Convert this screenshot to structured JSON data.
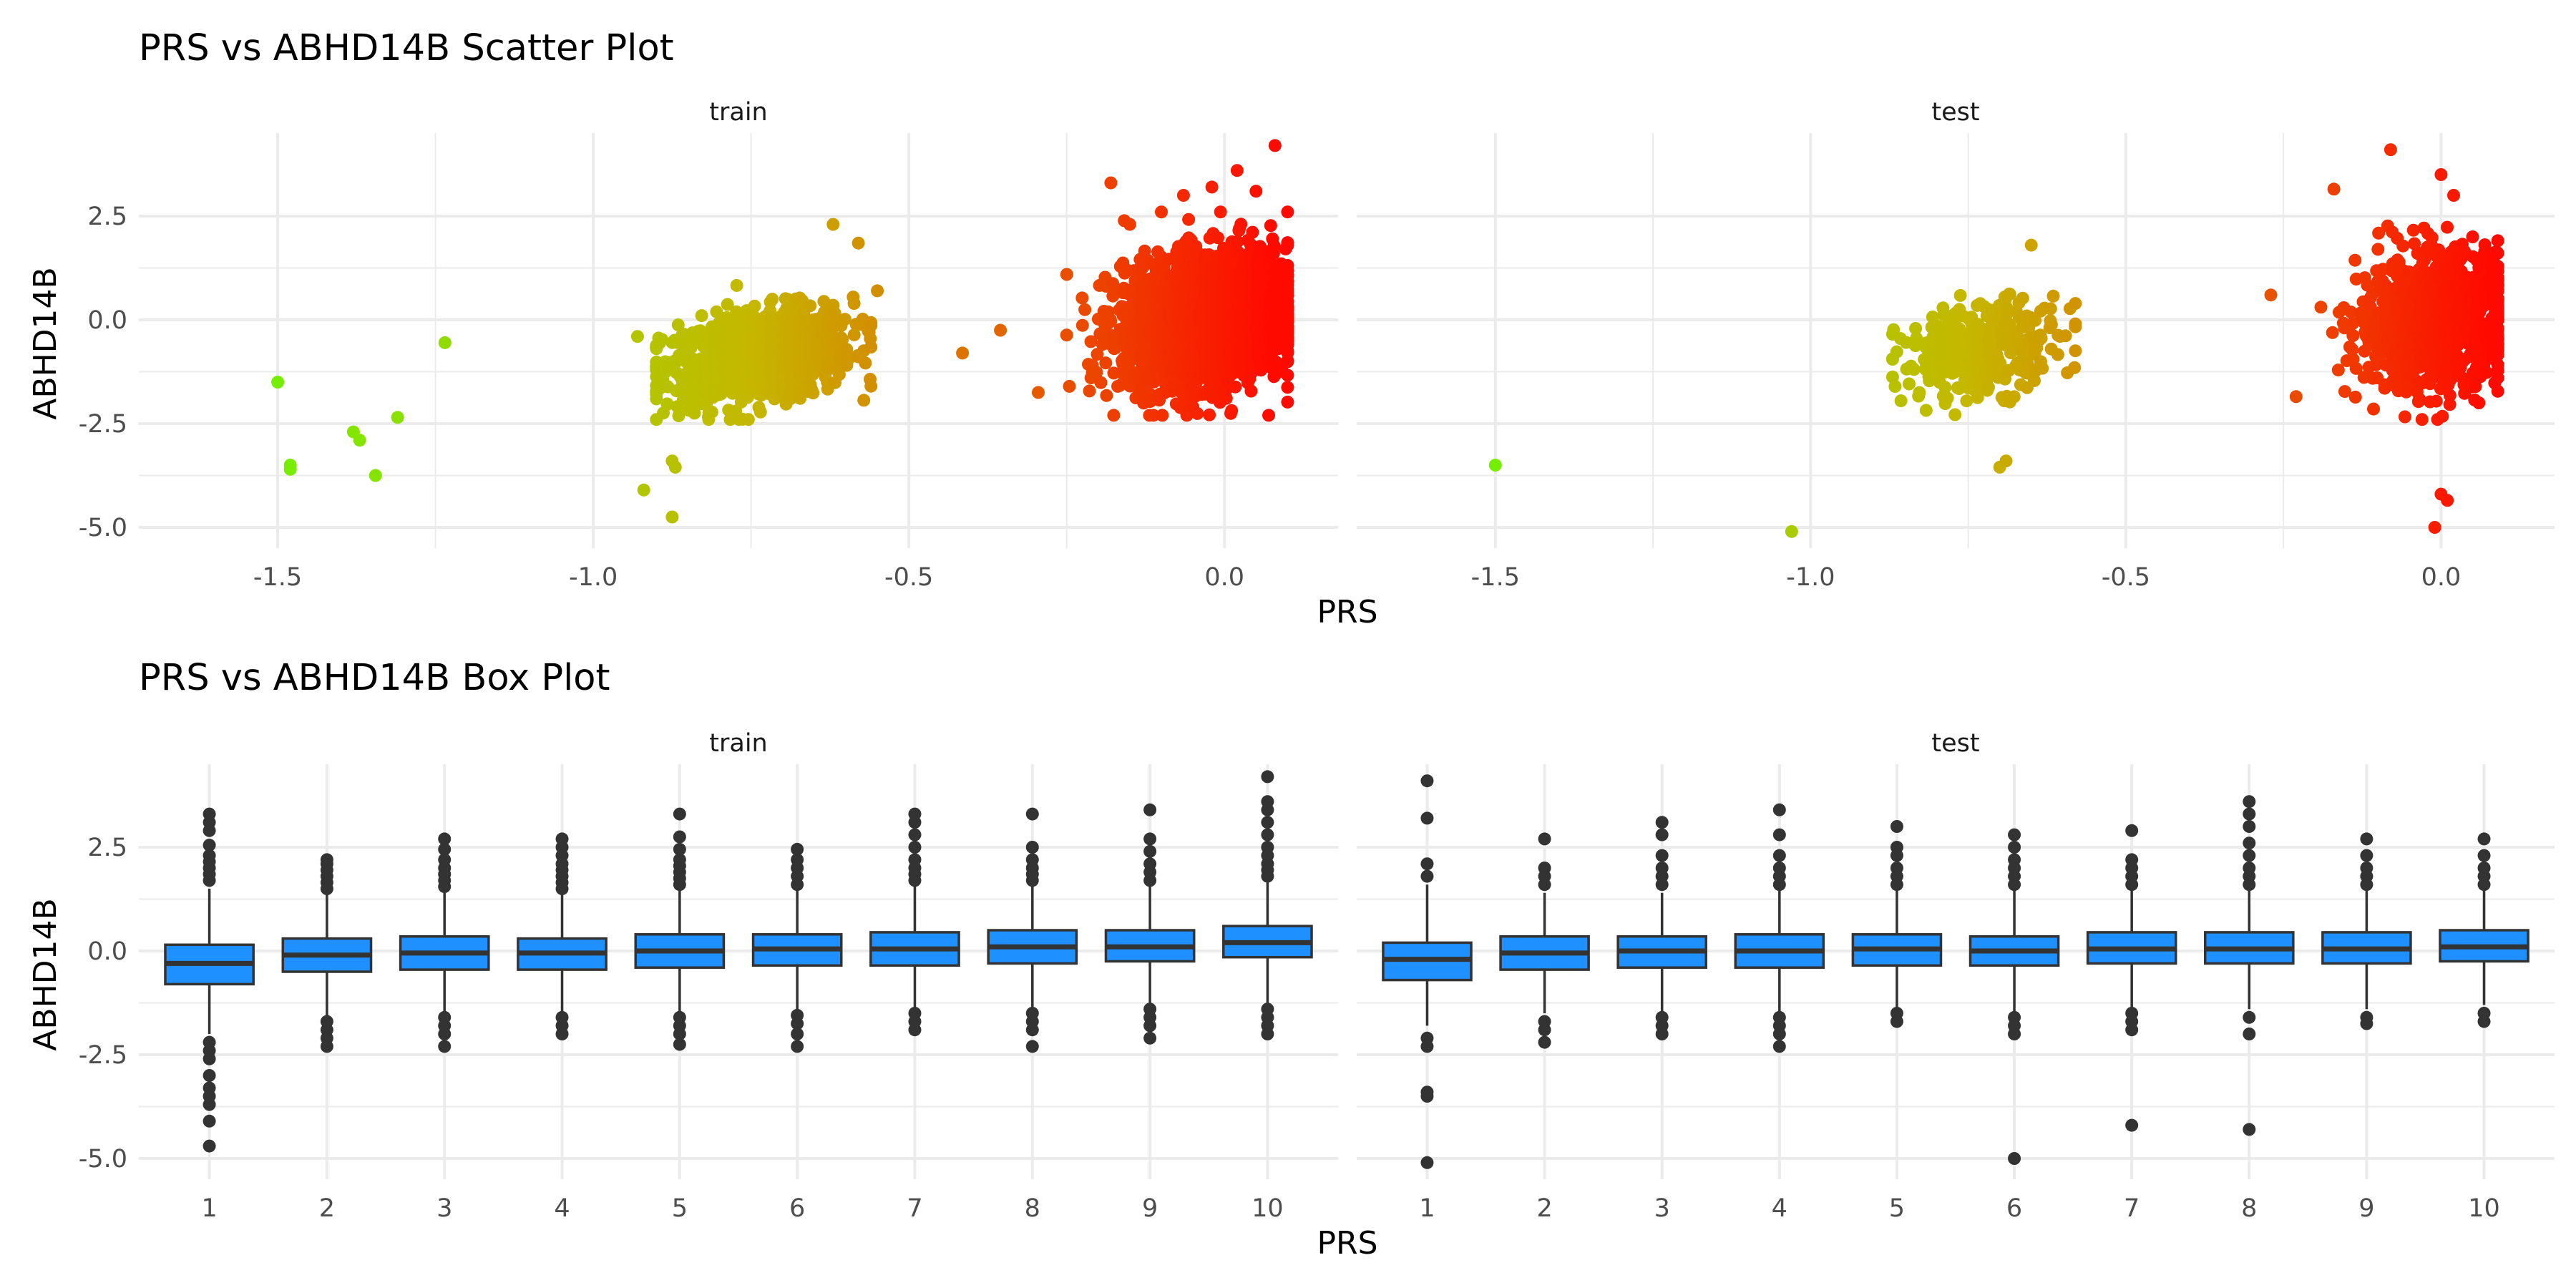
{
  "colors": {
    "box_fill": "#1e90ff",
    "box_line": "#333333",
    "gradient_low": "#76ee00",
    "gradient_mid": "#c5b800",
    "gradient_high": "#ff0a00",
    "grid": "#ebebeb"
  },
  "chart_data": [
    {
      "type": "scatter",
      "title": "PRS vs ABHD14B Scatter Plot",
      "xlabel": "PRS",
      "ylabel": "ABHD14B",
      "xlim": [
        -1.72,
        0.18
      ],
      "ylim": [
        -5.5,
        4.5
      ],
      "x_ticks": [
        -1.5,
        -1.0,
        -0.5,
        0.0
      ],
      "x_tick_labels": [
        "-1.5",
        "-1.0",
        "-0.5",
        "0.0"
      ],
      "y_ticks": [
        -5.0,
        -2.5,
        0.0,
        2.5
      ],
      "y_tick_labels": [
        "-5.0",
        "-2.5",
        "0.0",
        "2.5"
      ],
      "grid": true,
      "legend": "none",
      "color_by": "PRS",
      "facets": [
        {
          "label": "train",
          "points": [
            [
              -1.5,
              -1.5
            ],
            [
              -1.48,
              -3.5
            ],
            [
              -1.48,
              -3.6
            ],
            [
              -1.38,
              -2.7
            ],
            [
              -1.37,
              -2.9
            ],
            [
              -1.345,
              -3.75
            ],
            [
              -1.31,
              -2.35
            ],
            [
              -1.235,
              -0.55
            ],
            [
              -0.93,
              -0.4
            ],
            [
              -0.92,
              -4.1
            ],
            [
              -0.875,
              -3.4
            ],
            [
              -0.87,
              -3.55
            ],
            [
              -0.875,
              -4.75
            ],
            [
              -0.62,
              2.3
            ],
            [
              -0.58,
              1.85
            ],
            [
              -0.55,
              0.7
            ],
            [
              -0.415,
              -0.8
            ],
            [
              -0.355,
              -0.25
            ],
            [
              -0.295,
              -1.75
            ],
            [
              -0.18,
              3.3
            ],
            [
              -0.15,
              2.3
            ],
            [
              -0.1,
              2.6
            ],
            [
              -0.065,
              3.0
            ],
            [
              -0.02,
              3.2
            ],
            [
              0.02,
              3.6
            ],
            [
              0.05,
              3.1
            ],
            [
              0.08,
              4.2
            ],
            [
              0.1,
              2.6
            ],
            [
              0.07,
              -2.3
            ],
            [
              -0.05,
              -2.1
            ]
          ],
          "clusters": [
            {
              "x_mean": -0.74,
              "x_sd": 0.075,
              "y_mean": -0.9,
              "y_sd": 0.55,
              "n": 900,
              "x_range": [
                -0.9,
                -0.56
              ],
              "y_range": [
                -2.4,
                1.3
              ]
            },
            {
              "x_mean": -0.03,
              "x_sd": 0.065,
              "y_mean": 0.0,
              "y_sd": 0.75,
              "n": 2600,
              "x_range": [
                -0.25,
                0.1
              ],
              "y_range": [
                -2.3,
                2.6
              ]
            }
          ]
        },
        {
          "label": "test",
          "points": [
            [
              -1.5,
              -3.5
            ],
            [
              -1.03,
              -5.1
            ],
            [
              -0.7,
              -3.55
            ],
            [
              -0.69,
              -3.4
            ],
            [
              -0.65,
              1.8
            ],
            [
              -0.27,
              0.6
            ],
            [
              -0.23,
              -1.85
            ],
            [
              -0.17,
              3.15
            ],
            [
              -0.1,
              1.7
            ],
            [
              -0.08,
              4.1
            ],
            [
              0.0,
              3.5
            ],
            [
              0.02,
              3.0
            ],
            [
              0.05,
              2.0
            ],
            [
              0.0,
              -4.2
            ],
            [
              0.01,
              -4.35
            ],
            [
              -0.01,
              -5.0
            ],
            [
              0.06,
              -2.0
            ]
          ],
          "clusters": [
            {
              "x_mean": -0.73,
              "x_sd": 0.065,
              "y_mean": -0.7,
              "y_sd": 0.55,
              "n": 320,
              "x_range": [
                -0.87,
                -0.58
              ],
              "y_range": [
                -2.3,
                1.3
              ]
            },
            {
              "x_mean": -0.01,
              "x_sd": 0.06,
              "y_mean": 0.0,
              "y_sd": 0.8,
              "n": 950,
              "x_range": [
                -0.26,
                0.09
              ],
              "y_range": [
                -2.4,
                3.1
              ]
            }
          ]
        }
      ]
    },
    {
      "type": "box",
      "title": "PRS vs ABHD14B Box Plot",
      "xlabel": "PRS",
      "ylabel": "ABHD14B",
      "categories": [
        "1",
        "2",
        "3",
        "4",
        "5",
        "6",
        "7",
        "8",
        "9",
        "10"
      ],
      "ylim": [
        -5.5,
        4.5
      ],
      "y_ticks": [
        -5.0,
        -2.5,
        0.0,
        2.5
      ],
      "y_tick_labels": [
        "-5.0",
        "-2.5",
        "0.0",
        "2.5"
      ],
      "grid": true,
      "legend": "none",
      "facets": [
        {
          "label": "train",
          "boxes": [
            {
              "q1": -0.8,
              "median": -0.3,
              "q3": 0.15,
              "low": -2.0,
              "high": 1.5,
              "outliers": [
                1.7,
                1.85,
                2.0,
                2.15,
                2.3,
                2.55,
                2.9,
                3.1,
                3.3,
                -2.2,
                -2.4,
                -2.6,
                -3.0,
                -3.3,
                -3.5,
                -3.7,
                -4.1,
                -4.7
              ]
            },
            {
              "q1": -0.5,
              "median": -0.1,
              "q3": 0.3,
              "low": -1.6,
              "high": 1.4,
              "outliers": [
                1.5,
                1.65,
                1.8,
                1.95,
                2.1,
                2.2,
                -1.7,
                -1.9,
                -2.1,
                -2.3
              ]
            },
            {
              "q1": -0.45,
              "median": -0.05,
              "q3": 0.35,
              "low": -1.5,
              "high": 1.4,
              "outliers": [
                1.55,
                1.7,
                1.85,
                2.0,
                2.2,
                2.45,
                2.7,
                -1.6,
                -1.8,
                -2.0,
                -2.3
              ]
            },
            {
              "q1": -0.45,
              "median": -0.05,
              "q3": 0.3,
              "low": -1.5,
              "high": 1.4,
              "outliers": [
                1.5,
                1.65,
                1.8,
                1.95,
                2.1,
                2.3,
                2.5,
                2.7,
                -1.6,
                -1.8,
                -2.0
              ]
            },
            {
              "q1": -0.4,
              "median": 0.0,
              "q3": 0.4,
              "low": -1.5,
              "high": 1.5,
              "outliers": [
                1.6,
                1.75,
                1.9,
                2.05,
                2.2,
                2.45,
                2.75,
                3.3,
                -1.6,
                -1.8,
                -2.0,
                -2.25
              ]
            },
            {
              "q1": -0.35,
              "median": 0.05,
              "q3": 0.4,
              "low": -1.5,
              "high": 1.5,
              "outliers": [
                1.6,
                1.8,
                2.0,
                2.2,
                2.45,
                -1.55,
                -1.75,
                -2.0,
                -2.3
              ]
            },
            {
              "q1": -0.35,
              "median": 0.05,
              "q3": 0.45,
              "low": -1.4,
              "high": 1.6,
              "outliers": [
                1.7,
                1.85,
                2.0,
                2.2,
                2.5,
                2.8,
                3.1,
                3.3,
                -1.5,
                -1.7,
                -1.9
              ]
            },
            {
              "q1": -0.3,
              "median": 0.1,
              "q3": 0.5,
              "low": -1.4,
              "high": 1.6,
              "outliers": [
                1.7,
                1.85,
                2.0,
                2.2,
                2.5,
                3.3,
                -1.5,
                -1.7,
                -1.9,
                -2.3
              ]
            },
            {
              "q1": -0.25,
              "median": 0.1,
              "q3": 0.5,
              "low": -1.3,
              "high": 1.6,
              "outliers": [
                1.7,
                1.9,
                2.1,
                2.4,
                2.7,
                3.4,
                -1.4,
                -1.6,
                -1.8,
                -2.1
              ]
            },
            {
              "q1": -0.15,
              "median": 0.2,
              "q3": 0.6,
              "low": -1.3,
              "high": 1.7,
              "outliers": [
                1.8,
                1.95,
                2.1,
                2.3,
                2.5,
                2.8,
                3.1,
                3.4,
                3.6,
                4.2,
                -1.4,
                -1.6,
                -1.8,
                -2.0
              ]
            }
          ]
        },
        {
          "label": "test",
          "boxes": [
            {
              "q1": -0.7,
              "median": -0.2,
              "q3": 0.2,
              "low": -1.8,
              "high": 1.6,
              "outliers": [
                1.8,
                2.1,
                3.2,
                4.1,
                -2.1,
                -2.3,
                -3.4,
                -3.5,
                -5.1
              ]
            },
            {
              "q1": -0.45,
              "median": -0.05,
              "q3": 0.35,
              "low": -1.5,
              "high": 1.4,
              "outliers": [
                1.6,
                1.8,
                2.0,
                2.7,
                -1.7,
                -1.9,
                -2.2
              ]
            },
            {
              "q1": -0.4,
              "median": 0.0,
              "q3": 0.35,
              "low": -1.5,
              "high": 1.4,
              "outliers": [
                1.6,
                1.8,
                2.0,
                2.3,
                2.8,
                3.1,
                -1.6,
                -1.8,
                -2.0
              ]
            },
            {
              "q1": -0.4,
              "median": 0.0,
              "q3": 0.4,
              "low": -1.5,
              "high": 1.5,
              "outliers": [
                1.6,
                1.8,
                2.0,
                2.3,
                2.8,
                3.4,
                -1.6,
                -1.8,
                -2.0,
                -2.3
              ]
            },
            {
              "q1": -0.35,
              "median": 0.05,
              "q3": 0.4,
              "low": -1.4,
              "high": 1.5,
              "outliers": [
                1.6,
                1.8,
                2.0,
                2.3,
                2.5,
                3.0,
                -1.5,
                -1.7
              ]
            },
            {
              "q1": -0.35,
              "median": 0.0,
              "q3": 0.35,
              "low": -1.5,
              "high": 1.5,
              "outliers": [
                1.6,
                1.8,
                2.0,
                2.2,
                2.5,
                2.8,
                -1.6,
                -1.8,
                -2.0,
                -5.0
              ]
            },
            {
              "q1": -0.3,
              "median": 0.05,
              "q3": 0.45,
              "low": -1.4,
              "high": 1.5,
              "outliers": [
                1.6,
                1.8,
                2.0,
                2.2,
                2.9,
                -1.5,
                -1.7,
                -1.9,
                -4.2
              ]
            },
            {
              "q1": -0.3,
              "median": 0.05,
              "q3": 0.45,
              "low": -1.4,
              "high": 1.5,
              "outliers": [
                1.6,
                1.8,
                2.0,
                2.3,
                2.6,
                3.0,
                3.3,
                3.6,
                -1.6,
                -2.0,
                -4.3
              ]
            },
            {
              "q1": -0.3,
              "median": 0.05,
              "q3": 0.45,
              "low": -1.4,
              "high": 1.5,
              "outliers": [
                1.6,
                1.8,
                2.0,
                2.3,
                2.7,
                -1.6,
                -1.75
              ]
            },
            {
              "q1": -0.25,
              "median": 0.1,
              "q3": 0.5,
              "low": -1.3,
              "high": 1.5,
              "outliers": [
                1.6,
                1.8,
                2.0,
                2.3,
                2.7,
                -1.5,
                -1.7
              ]
            }
          ]
        }
      ]
    }
  ]
}
